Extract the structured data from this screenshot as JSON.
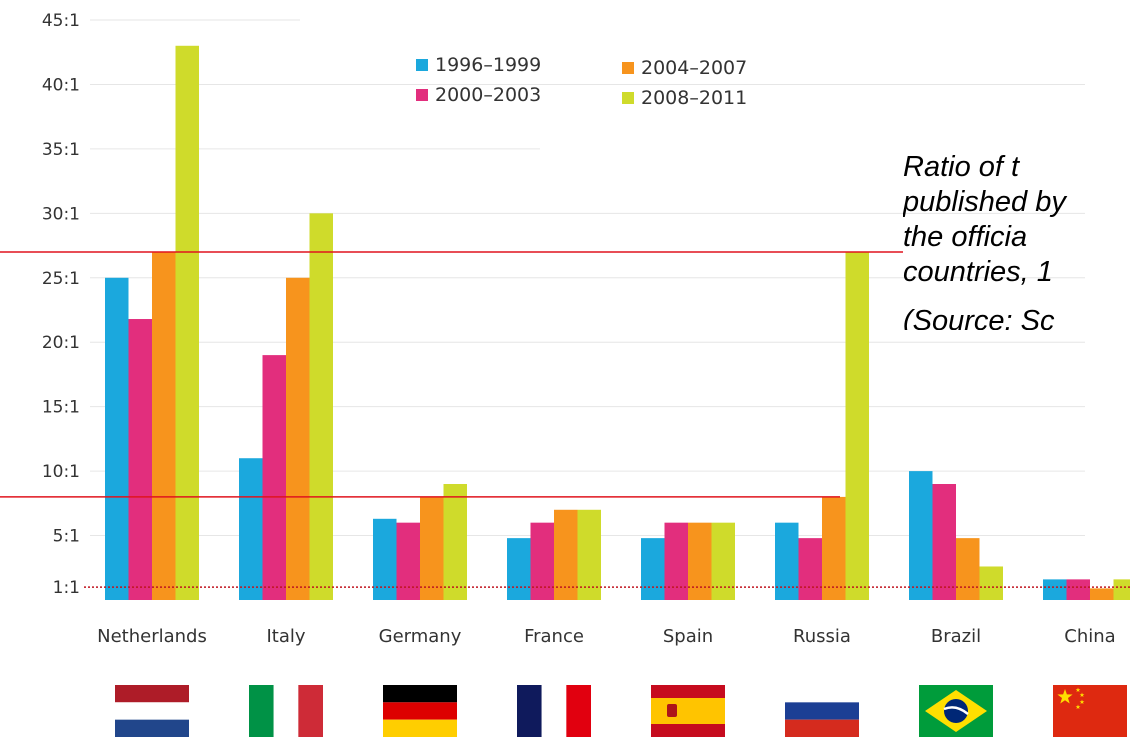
{
  "chart_data": {
    "type": "bar",
    "title": "",
    "xlabel": "",
    "ylabel": "",
    "ylim": [
      0,
      45
    ],
    "yticks": [
      {
        "value": 1,
        "label": "1:1"
      },
      {
        "value": 5,
        "label": "5:1"
      },
      {
        "value": 10,
        "label": "10:1"
      },
      {
        "value": 15,
        "label": "15:1"
      },
      {
        "value": 20,
        "label": "20:1"
      },
      {
        "value": 25,
        "label": "25:1"
      },
      {
        "value": 30,
        "label": "30:1"
      },
      {
        "value": 35,
        "label": "35:1"
      },
      {
        "value": 40,
        "label": "40:1"
      },
      {
        "value": 45,
        "label": "45:1"
      }
    ],
    "categories": [
      "Netherlands",
      "Italy",
      "Germany",
      "France",
      "Spain",
      "Russia",
      "Brazil",
      "China"
    ],
    "series": [
      {
        "name": "1996–1999",
        "color": "#1ba8dd",
        "values": [
          25,
          11,
          6.3,
          4.8,
          4.8,
          6,
          10,
          1.6
        ]
      },
      {
        "name": "2000–2003",
        "color": "#e22e7d",
        "values": [
          21.8,
          19,
          6,
          6,
          6,
          4.8,
          9,
          1.6
        ]
      },
      {
        "name": "2004–2007",
        "color": "#f7941d",
        "values": [
          27,
          25,
          8,
          7,
          6,
          8,
          4.8,
          0.9
        ]
      },
      {
        "name": "2008–2011",
        "color": "#cfdb2b",
        "values": [
          43,
          30,
          9,
          7,
          6,
          27,
          2.6,
          1.6
        ]
      }
    ],
    "reference_lines": [
      {
        "value": 27,
        "color": "#e0141e",
        "style": "solid"
      },
      {
        "value": 8,
        "color": "#e0141e",
        "style": "solid"
      },
      {
        "value": 1,
        "color": "#c0141e",
        "style": "dotted"
      }
    ],
    "legend_position": "top-center",
    "grid": true,
    "flags": [
      "netherlands-flag",
      "italy-flag",
      "germany-flag",
      "france-flag",
      "spain-flag",
      "russia-flag",
      "brazil-flag",
      "china-flag"
    ]
  },
  "caption": {
    "lines": [
      "Ratio of t",
      "published by",
      "the officia",
      "countries, 1"
    ],
    "source": "(Source: Sc"
  }
}
